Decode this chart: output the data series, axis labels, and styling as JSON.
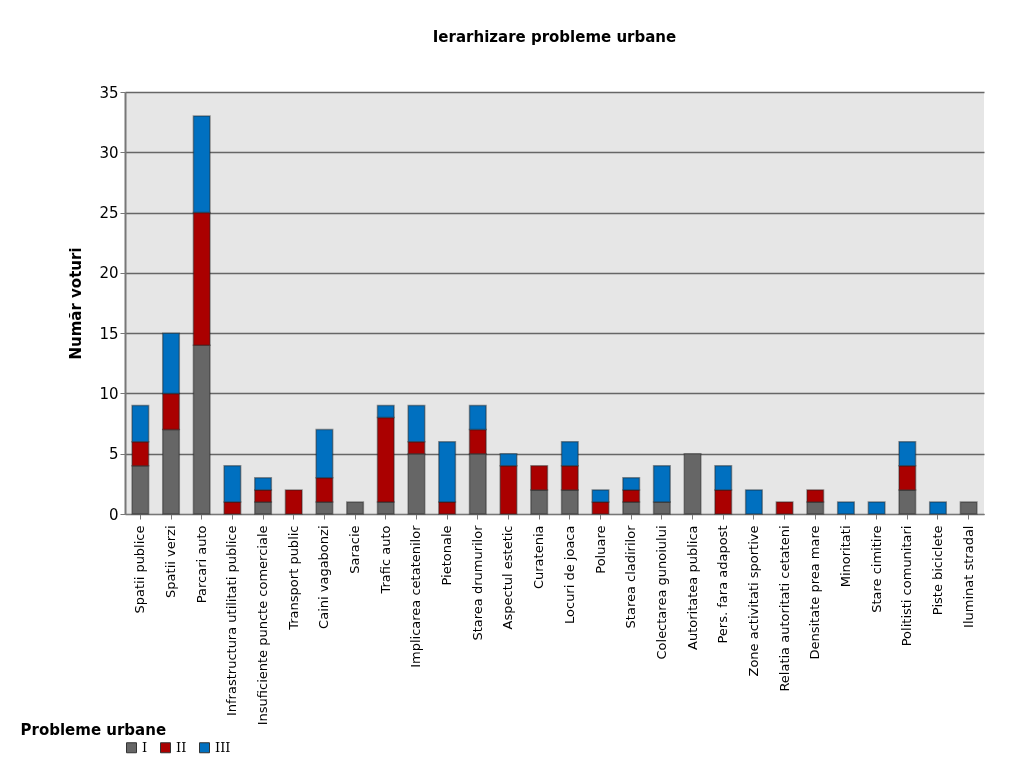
{
  "chart_data": {
    "type": "bar",
    "title": "Ierarhizare probleme urbane",
    "xlabel": "Probleme urbane",
    "ylabel": "Număr voturi",
    "categories": [
      "Spatii publice",
      "Spatii verzi",
      "Parcari auto",
      "Infrastructura utilitati publice",
      "Insuficiente puncte comerciale",
      "Transport public",
      "Caini vagabonzi",
      "Saracie",
      "Trafic auto",
      "Implicarea cetatenilor",
      "Pietonale",
      "Starea drumurilor",
      "Aspectul estetic",
      "Curatenia",
      "Locuri de joaca",
      "Poluare",
      "Starea cladirilor",
      "Colectarea gunoiului",
      "Autoritatea publica",
      "Pers. fara adapost",
      "Zone activitati sportive",
      "Relatia autoritati cetateni",
      "Densitate prea mare",
      "Minoritati",
      "Stare cimitire",
      "Politisti comunitari",
      "Piste biciclete",
      "Iluminat stradal"
    ],
    "series": [
      {
        "name": "I",
        "color": "#666666",
        "values": [
          4,
          7,
          14,
          0,
          1,
          0,
          1,
          1,
          1,
          5,
          0,
          5,
          0,
          2,
          2,
          0,
          1,
          1,
          5,
          0,
          0,
          0,
          1,
          0,
          0,
          2,
          0,
          1
        ]
      },
      {
        "name": "II",
        "color": "#aa0000",
        "values": [
          2,
          3,
          11,
          1,
          1,
          2,
          2,
          0,
          7,
          1,
          1,
          2,
          4,
          2,
          2,
          1,
          1,
          0,
          0,
          2,
          0,
          1,
          1,
          0,
          0,
          2,
          0,
          0
        ]
      },
      {
        "name": "III",
        "color": "#0070c0",
        "values": [
          3,
          5,
          8,
          3,
          1,
          0,
          4,
          0,
          1,
          3,
          5,
          2,
          1,
          0,
          2,
          1,
          1,
          3,
          0,
          2,
          2,
          0,
          0,
          1,
          1,
          2,
          1,
          0
        ]
      }
    ],
    "stacked": true,
    "ylim": [
      0,
      35
    ],
    "yticks": [
      0,
      5,
      10,
      15,
      20,
      25,
      30,
      35
    ],
    "grid": "y",
    "legend": "bottom"
  }
}
